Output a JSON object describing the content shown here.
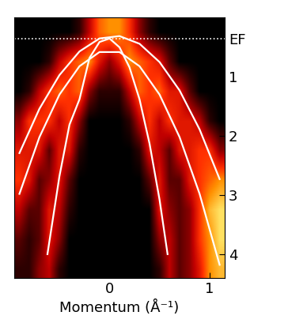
{
  "chart_data": {
    "type": "heatmap",
    "x_label": "Momentum (Å⁻¹)",
    "xlim": [
      -0.95,
      1.15
    ],
    "xticks": [
      0,
      1
    ],
    "ylim": [
      4.4,
      0.0
    ],
    "yticks": [
      {
        "value": 0.35,
        "label": "EF"
      },
      1,
      2,
      3,
      4
    ],
    "tick_labels": true,
    "cells": {
      "x": [
        -0.9,
        -0.8,
        -0.7,
        -0.6,
        -0.5,
        -0.4,
        -0.3,
        -0.2,
        -0.1,
        0.0,
        0.1,
        0.2,
        0.3,
        0.4,
        0.5,
        0.6,
        0.7,
        0.8,
        0.9,
        1.0,
        1.1
      ],
      "y": [
        0.25,
        0.75,
        1.25,
        1.75,
        2.25,
        2.75,
        3.25,
        3.75,
        4.25
      ],
      "values": [
        [
          0,
          0,
          0,
          0,
          0,
          0,
          1,
          4,
          7,
          8,
          8,
          6,
          3,
          1,
          0,
          0,
          0,
          0,
          0,
          0,
          0
        ],
        [
          0,
          0,
          0,
          1,
          4,
          6,
          7,
          8,
          5,
          3,
          5,
          8,
          7,
          6,
          5,
          2,
          0,
          0,
          0,
          0,
          0
        ],
        [
          0,
          1,
          4,
          6,
          7,
          6,
          7,
          3,
          1,
          1,
          1,
          4,
          7,
          6,
          7,
          5,
          5,
          2,
          0,
          0,
          0
        ],
        [
          3,
          6,
          6,
          6,
          4,
          6,
          3,
          0,
          0,
          0,
          0,
          1,
          4,
          6,
          4,
          6,
          5,
          5,
          4,
          1,
          0
        ],
        [
          5,
          5,
          5,
          2,
          5,
          5,
          1,
          0,
          0,
          0,
          0,
          0,
          1,
          5,
          4,
          2,
          5,
          5,
          6,
          6,
          3
        ],
        [
          6,
          5,
          2,
          3,
          5,
          2,
          0,
          0,
          0,
          0,
          0,
          0,
          0,
          2,
          5,
          2,
          2,
          5,
          6,
          7,
          8
        ],
        [
          4,
          2,
          2,
          5,
          4,
          1,
          0,
          0,
          0,
          0,
          0,
          0,
          0,
          0,
          5,
          3,
          2,
          3,
          6,
          9,
          10
        ],
        [
          2,
          1,
          2,
          5,
          3,
          0,
          0,
          0,
          0,
          0,
          0,
          0,
          0,
          0,
          3,
          4,
          2,
          3,
          6,
          8,
          10
        ],
        [
          1,
          1,
          3,
          4,
          1,
          0,
          0,
          0,
          0,
          0,
          0,
          0,
          0,
          0,
          1,
          4,
          2,
          3,
          5,
          8,
          9
        ]
      ]
    },
    "series": [
      {
        "type": "line",
        "color": "white",
        "line_style": "solid",
        "x": [
          -0.62,
          -0.5,
          -0.4,
          -0.3,
          -0.2,
          -0.1,
          0.0,
          0.1,
          0.2,
          0.3,
          0.4,
          0.5,
          0.58
        ],
        "values": [
          4.0,
          2.68,
          1.81,
          1.38,
          0.68,
          0.41,
          0.35,
          0.5,
          0.84,
          1.38,
          2.13,
          3.08,
          4.0
        ]
      },
      {
        "type": "line",
        "color": "white",
        "line_style": "solid",
        "x": [
          -0.9,
          -0.7,
          -0.5,
          -0.3,
          -0.1,
          0.1,
          0.3,
          0.5,
          0.7,
          0.9,
          1.1
        ],
        "values": [
          2.29,
          1.54,
          0.97,
          0.57,
          0.35,
          0.31,
          0.44,
          0.75,
          1.23,
          1.89,
          2.73
        ]
      },
      {
        "type": "line",
        "color": "white",
        "line_style": "solid",
        "x": [
          -0.9,
          -0.7,
          -0.5,
          -0.3,
          -0.1,
          0.1,
          0.3,
          0.5,
          0.7,
          0.9,
          1.1
        ],
        "values": [
          2.98,
          2.02,
          1.3,
          0.82,
          0.58,
          0.58,
          0.82,
          1.3,
          2.02,
          2.98,
          4.18
        ]
      }
    ]
  }
}
